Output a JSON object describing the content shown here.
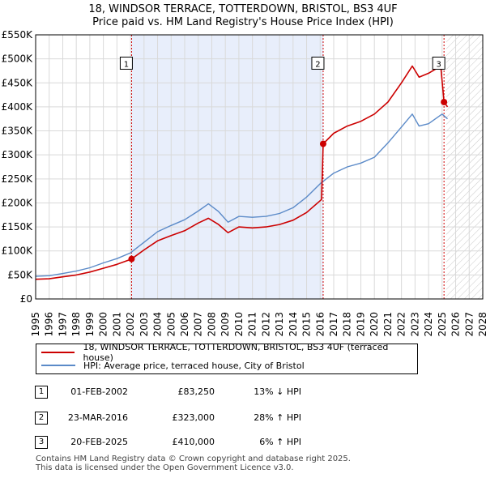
{
  "header": {
    "title": "18, WINDSOR TERRACE, TOTTERDOWN, BRISTOL, BS3 4UF",
    "subtitle": "Price paid vs. HM Land Registry's House Price Index (HPI)"
  },
  "legend": {
    "property_label": "18, WINDSOR TERRACE, TOTTERDOWN, BRISTOL, BS3 4UF (terraced house)",
    "hpi_label": "HPI: Average price, terraced house, City of Bristol"
  },
  "sales": [
    {
      "num": "1",
      "date": "01-FEB-2002",
      "price": "£83,250",
      "pct": "13% ↓ HPI"
    },
    {
      "num": "2",
      "date": "23-MAR-2016",
      "price": "£323,000",
      "pct": "28% ↑ HPI"
    },
    {
      "num": "3",
      "date": "20-FEB-2025",
      "price": "£410,000",
      "pct": "6% ↑ HPI"
    }
  ],
  "footer": {
    "line1": "Contains HM Land Registry data © Crown copyright and database right 2025.",
    "line2": "This data is licensed under the Open Government Licence v3.0."
  },
  "chart_data": {
    "type": "line",
    "x_range": [
      1995,
      2028
    ],
    "y_range": [
      0,
      550000
    ],
    "x_ticks": [
      "1995",
      "1996",
      "1997",
      "1998",
      "1999",
      "2000",
      "2001",
      "2002",
      "2003",
      "2004",
      "2005",
      "2006",
      "2007",
      "2008",
      "2009",
      "2010",
      "2011",
      "2012",
      "2013",
      "2014",
      "2015",
      "2016",
      "2017",
      "2018",
      "2019",
      "2020",
      "2021",
      "2022",
      "2023",
      "2024",
      "2025",
      "2026",
      "2027",
      "2028"
    ],
    "y_ticks": [
      {
        "value": 0,
        "label": "£0"
      },
      {
        "value": 50000,
        "label": "£50K"
      },
      {
        "value": 100000,
        "label": "£100K"
      },
      {
        "value": 150000,
        "label": "£150K"
      },
      {
        "value": 200000,
        "label": "£200K"
      },
      {
        "value": 250000,
        "label": "£250K"
      },
      {
        "value": 300000,
        "label": "£300K"
      },
      {
        "value": 350000,
        "label": "£350K"
      },
      {
        "value": 400000,
        "label": "£400K"
      },
      {
        "value": 450000,
        "label": "£450K"
      },
      {
        "value": 500000,
        "label": "£500K"
      },
      {
        "value": 550000,
        "label": "£550K"
      }
    ],
    "shaded_period": [
      2002.08,
      2016.22
    ],
    "future_hatch_from": 2025.3,
    "colors": {
      "property": "#cc0000",
      "hpi": "#5b8ac8",
      "shade": "#e8eefb",
      "grid": "#d9d9d9"
    },
    "series": [
      {
        "name": "HPI: Average price, terraced house, City of Bristol",
        "points": [
          [
            1995,
            47000
          ],
          [
            1996,
            48500
          ],
          [
            1997,
            53000
          ],
          [
            1998,
            58000
          ],
          [
            1999,
            65000
          ],
          [
            2000,
            75000
          ],
          [
            2001,
            84000
          ],
          [
            2002,
            96000
          ],
          [
            2003,
            118000
          ],
          [
            2004,
            140000
          ],
          [
            2005,
            153000
          ],
          [
            2006,
            165000
          ],
          [
            2007,
            183000
          ],
          [
            2007.75,
            198000
          ],
          [
            2008.5,
            182000
          ],
          [
            2009.2,
            160000
          ],
          [
            2010,
            172000
          ],
          [
            2011,
            170000
          ],
          [
            2012,
            172000
          ],
          [
            2013,
            178000
          ],
          [
            2014,
            190000
          ],
          [
            2015,
            212000
          ],
          [
            2016,
            240000
          ],
          [
            2017,
            262000
          ],
          [
            2018,
            275000
          ],
          [
            2019,
            283000
          ],
          [
            2020,
            295000
          ],
          [
            2021,
            325000
          ],
          [
            2022,
            358000
          ],
          [
            2022.8,
            385000
          ],
          [
            2023.3,
            360000
          ],
          [
            2024,
            365000
          ],
          [
            2025,
            385000
          ],
          [
            2025.4,
            375000
          ]
        ]
      },
      {
        "name": "18, WINDSOR TERRACE, TOTTERDOWN, BRISTOL, BS3 4UF (terraced house)",
        "points": [
          [
            1995,
            41000
          ],
          [
            1996,
            42000
          ],
          [
            1997,
            46000
          ],
          [
            1998,
            50000
          ],
          [
            1999,
            56000
          ],
          [
            2000,
            64000
          ],
          [
            2001,
            72000
          ],
          [
            2002.08,
            83250
          ],
          [
            2003,
            102000
          ],
          [
            2004,
            121000
          ],
          [
            2005,
            132000
          ],
          [
            2006,
            142000
          ],
          [
            2007,
            158000
          ],
          [
            2007.75,
            168000
          ],
          [
            2008.5,
            155000
          ],
          [
            2009.2,
            138000
          ],
          [
            2010,
            150000
          ],
          [
            2011,
            148000
          ],
          [
            2012,
            150000
          ],
          [
            2013,
            155000
          ],
          [
            2014,
            164000
          ],
          [
            2015,
            180000
          ],
          [
            2016.1,
            207000
          ],
          [
            2016.22,
            323000
          ],
          [
            2017,
            345000
          ],
          [
            2018,
            360000
          ],
          [
            2019,
            370000
          ],
          [
            2020,
            385000
          ],
          [
            2021,
            410000
          ],
          [
            2022,
            450000
          ],
          [
            2022.8,
            485000
          ],
          [
            2023.3,
            462000
          ],
          [
            2024,
            470000
          ],
          [
            2024.9,
            485000
          ],
          [
            2025.14,
            410000
          ],
          [
            2025.4,
            400000
          ]
        ]
      }
    ],
    "sale_markers": [
      {
        "label": "1",
        "x": 2002.08,
        "y": 83250
      },
      {
        "label": "2",
        "x": 2016.22,
        "y": 323000
      },
      {
        "label": "3",
        "x": 2025.14,
        "y": 410000
      }
    ]
  }
}
